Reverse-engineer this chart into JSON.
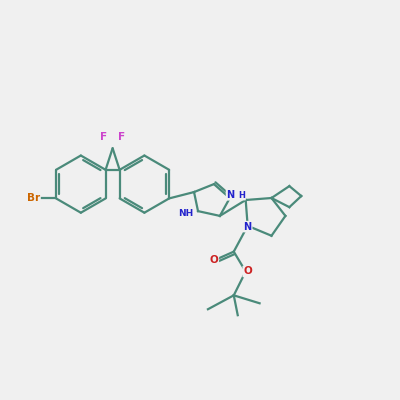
{
  "background_color": "#f0f0f0",
  "bond_color": "#4a8a7a",
  "bond_width": 1.6,
  "atom_colors": {
    "Br": "#cc6600",
    "F": "#cc44cc",
    "N": "#2222cc",
    "O": "#cc2222",
    "C": "#4a8a7a"
  },
  "figsize": [
    4.0,
    4.0
  ],
  "dpi": 100
}
